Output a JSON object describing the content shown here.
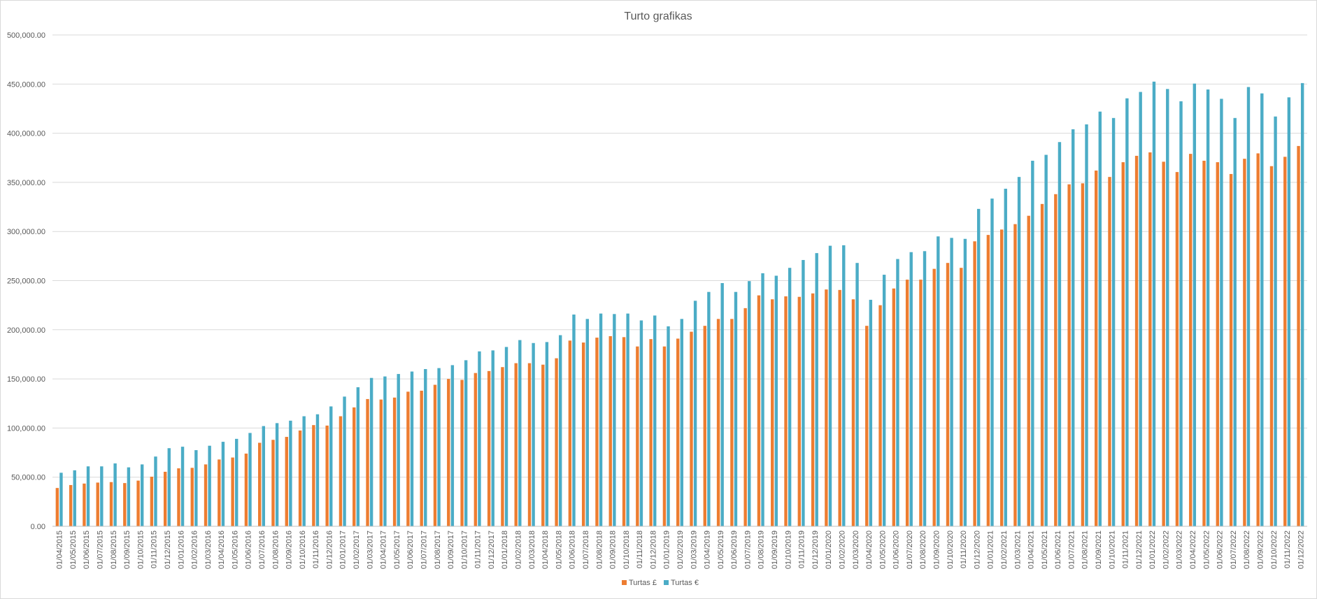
{
  "chart_data": {
    "type": "bar",
    "title": "Turto grafikas",
    "xlabel": "",
    "ylabel": "",
    "ylim": [
      0,
      500000
    ],
    "y_ticks": [
      0,
      50000,
      100000,
      150000,
      200000,
      250000,
      300000,
      350000,
      400000,
      450000,
      500000
    ],
    "y_tick_labels": [
      "0.00",
      "50,000.00",
      "100,000.00",
      "150,000.00",
      "200,000.00",
      "250,000.00",
      "300,000.00",
      "350,000.00",
      "400,000.00",
      "450,000.00",
      "500,000.00"
    ],
    "grid": true,
    "legend_position": "bottom",
    "categories": [
      "01/04/2015",
      "01/05/2015",
      "01/06/2015",
      "01/07/2015",
      "01/08/2015",
      "01/09/2015",
      "01/10/2015",
      "01/11/2015",
      "01/12/2015",
      "01/01/2016",
      "01/02/2016",
      "01/03/2016",
      "01/04/2016",
      "01/05/2016",
      "01/06/2016",
      "01/07/2016",
      "01/08/2016",
      "01/09/2016",
      "01/10/2016",
      "01/11/2016",
      "01/12/2016",
      "01/01/2017",
      "01/02/2017",
      "01/03/2017",
      "01/04/2017",
      "01/05/2017",
      "01/06/2017",
      "01/07/2017",
      "01/08/2017",
      "01/09/2017",
      "01/10/2017",
      "01/11/2017",
      "01/12/2017",
      "01/01/2018",
      "01/02/2018",
      "01/03/2018",
      "01/04/2018",
      "01/05/2018",
      "01/06/2018",
      "01/07/2018",
      "01/08/2018",
      "01/09/2018",
      "01/10/2018",
      "01/11/2018",
      "01/12/2018",
      "01/01/2019",
      "01/02/2019",
      "01/03/2019",
      "01/04/2019",
      "01/05/2019",
      "01/06/2019",
      "01/07/2019",
      "01/08/2019",
      "01/09/2019",
      "01/10/2019",
      "01/11/2019",
      "01/12/2019",
      "01/01/2020",
      "01/02/2020",
      "01/03/2020",
      "01/04/2020",
      "01/05/2020",
      "01/06/2020",
      "01/07/2020",
      "01/08/2020",
      "01/09/2020",
      "01/10/2020",
      "01/11/2020",
      "01/12/2020",
      "01/01/2021",
      "01/02/2021",
      "01/03/2021",
      "01/04/2021",
      "01/05/2021",
      "01/06/2021",
      "01/07/2021",
      "01/08/2021",
      "01/09/2021",
      "01/10/2021",
      "01/11/2021",
      "01/12/2021",
      "01/01/2022",
      "01/02/2022",
      "01/03/2022",
      "01/04/2022",
      "01/05/2022",
      "01/06/2022",
      "01/07/2022",
      "01/08/2022",
      "01/09/2022",
      "01/10/2022",
      "01/11/2022",
      "01/12/2022"
    ],
    "series": [
      {
        "name": "Turtas £",
        "color": "#ed7d31",
        "values": [
          39000,
          42000,
          43500,
          44500,
          45000,
          44000,
          46500,
          50500,
          55500,
          59000,
          59500,
          63000,
          68000,
          70000,
          74000,
          85000,
          88000,
          91000,
          97500,
          103000,
          102500,
          112000,
          121000,
          129500,
          129000,
          131000,
          137000,
          138000,
          144000,
          150000,
          149000,
          156000,
          158000,
          162000,
          166000,
          166000,
          164500,
          171000,
          189000,
          187000,
          192000,
          193500,
          192500,
          183000,
          190500,
          183000,
          191000,
          198000,
          204000,
          211000,
          211000,
          222000,
          235000,
          231000,
          234000,
          233500,
          237000,
          241000,
          240500,
          231000,
          204000,
          225000,
          242000,
          251000,
          251000,
          262000,
          268000,
          263000,
          290000,
          296500,
          302000,
          307500,
          316000,
          328000,
          338000,
          348000,
          349000,
          362000,
          355500,
          370500,
          377000,
          380500,
          371000,
          360500,
          379000,
          372000,
          370500,
          358500,
          374000,
          379500,
          366500,
          376000,
          387000
        ]
      },
      {
        "name": "Turtas €",
        "color": "#4bacc6",
        "values": [
          54500,
          57000,
          61000,
          61000,
          64000,
          60000,
          63000,
          71000,
          79500,
          81000,
          77500,
          82000,
          86000,
          89000,
          95000,
          102000,
          105000,
          107500,
          112000,
          114000,
          122000,
          132000,
          141500,
          151000,
          152500,
          155000,
          157500,
          160000,
          161000,
          164000,
          169000,
          178000,
          179000,
          182500,
          189500,
          186500,
          187500,
          194500,
          215500,
          211000,
          216500,
          216000,
          216500,
          209500,
          214500,
          203500,
          211000,
          229500,
          238500,
          247500,
          238500,
          249500,
          257500,
          255000,
          263000,
          271000,
          278000,
          285500,
          286000,
          268000,
          230500,
          256000,
          272000,
          279000,
          280000,
          295000,
          293500,
          292500,
          323000,
          333500,
          343500,
          355500,
          372000,
          378000,
          391000,
          404000,
          409000,
          422000,
          415500,
          435500,
          442000,
          452500,
          445000,
          432500,
          450500,
          444500,
          435000,
          415500,
          447000,
          440500,
          417000,
          436500,
          451000
        ]
      }
    ]
  }
}
